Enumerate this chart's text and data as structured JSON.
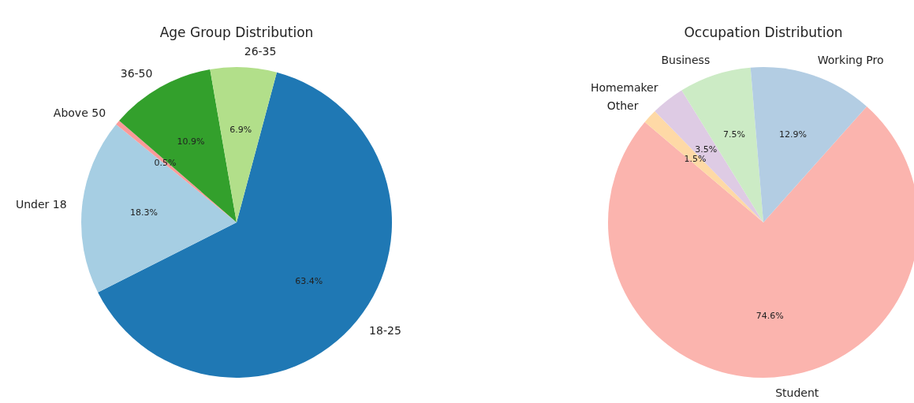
{
  "chart_data": [
    {
      "type": "pie",
      "title": "Age Group Distribution",
      "categories": [
        "18-25",
        "Under 18",
        "Above 50",
        "36-50",
        "26-35"
      ],
      "values": [
        63.4,
        18.3,
        0.5,
        10.9,
        6.9
      ],
      "colors": [
        "#1f78b4",
        "#a6cee3",
        "#fb9a99",
        "#33a02c",
        "#b2df8a"
      ],
      "value_labels": [
        "63.4%",
        "18.3%",
        "0.5%",
        "10.9%",
        "6.9%"
      ]
    },
    {
      "type": "pie",
      "title": "Occupation Distribution",
      "categories": [
        "Student",
        "Other",
        "Homemaker",
        "Business",
        "Working Pro"
      ],
      "values": [
        74.6,
        1.5,
        3.5,
        7.5,
        12.9
      ],
      "colors": [
        "#fbb4ae",
        "#fed9a6",
        "#decbe4",
        "#ccebc5",
        "#b3cde3"
      ],
      "value_labels": [
        "74.6%",
        "1.5%",
        "3.5%",
        "7.5%",
        "12.9%"
      ]
    }
  ]
}
